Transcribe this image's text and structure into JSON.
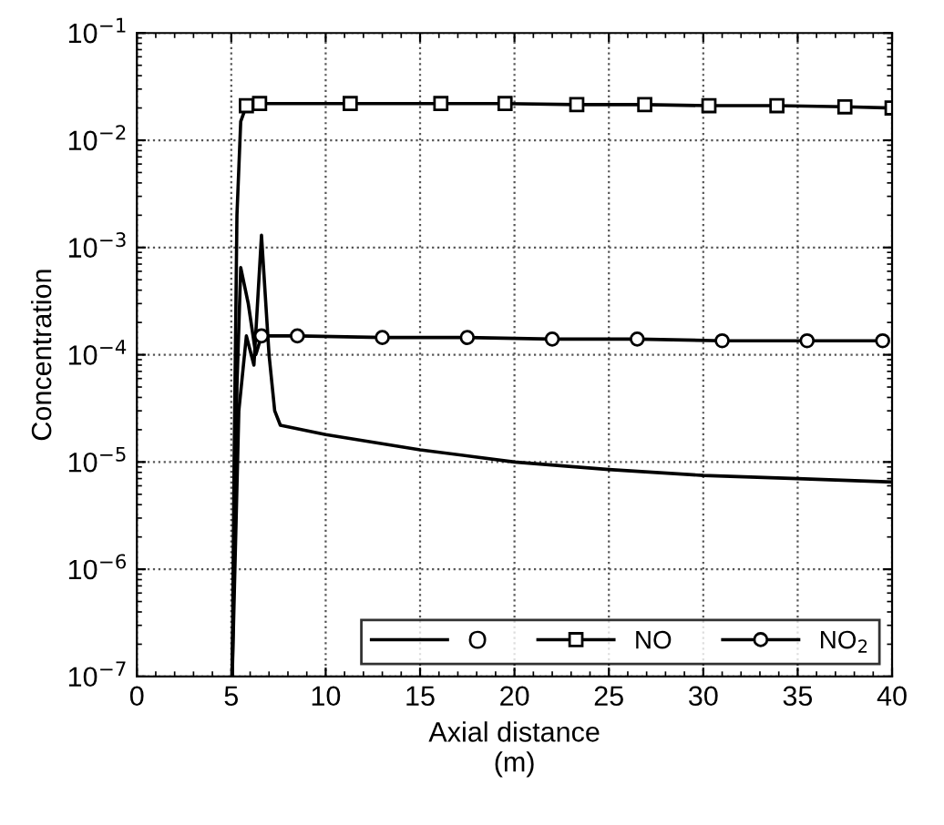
{
  "chart_data": {
    "type": "line",
    "xlabel": "Axial distance\n(m)",
    "ylabel": "Concentration",
    "log": "y",
    "grid": true,
    "legend": "bottom right",
    "line_style": "solid",
    "xlim": [
      0,
      40
    ],
    "xticks": [
      0,
      5,
      10,
      15,
      20,
      25,
      30,
      35,
      40
    ],
    "ylim": [
      1e-07,
      0.1
    ],
    "yticks": [
      {
        "value": 1e-07,
        "label": "10$^{−7}$"
      },
      {
        "value": 1e-06,
        "label": "10$^{−6}$"
      },
      {
        "value": 1e-05,
        "label": "10$^{−5}$"
      },
      {
        "value": 0.0001,
        "label": "10$^{−4}$"
      },
      {
        "value": 0.001,
        "label": "10$^{−3}$"
      },
      {
        "value": 0.01,
        "label": "10$^{−2}$"
      },
      {
        "value": 0.1,
        "label": "10$^{−1}$"
      }
    ],
    "series": [
      {
        "name": "O",
        "color": "#000000",
        "marker": "none",
        "x": [
          5.05,
          5.4,
          5.8,
          6.2,
          6.6,
          7.0,
          7.3,
          7.6,
          10,
          15,
          20,
          25,
          30,
          35,
          40
        ],
        "values": [
          1e-07,
          3e-05,
          0.00015,
          8e-05,
          0.0013,
          0.0001,
          3e-05,
          2.2e-05,
          1.8e-05,
          1.3e-05,
          1e-05,
          8.5e-06,
          7.5e-06,
          7e-06,
          6.5e-06
        ]
      },
      {
        "name": "NO",
        "color": "#000000",
        "marker": "square",
        "x": [
          5.05,
          5.15,
          5.3,
          5.5,
          5.8,
          6.5,
          11.3,
          16.1,
          19.5,
          23.3,
          26.9,
          30.3,
          33.9,
          37.5,
          40
        ],
        "values": [
          1e-07,
          1e-05,
          0.002,
          0.015,
          0.021,
          0.022,
          0.022,
          0.022,
          0.022,
          0.0215,
          0.0215,
          0.021,
          0.021,
          0.0205,
          0.02
        ]
      },
      {
        "name": "NO$_{2}$",
        "color": "#000000",
        "marker": "circle",
        "x": [
          5.05,
          5.3,
          5.5,
          5.9,
          6.3,
          6.6,
          8.5,
          13,
          17.5,
          22,
          26.5,
          31,
          35.5,
          39.5
        ],
        "values": [
          1e-07,
          5e-05,
          0.00065,
          0.0003,
          0.0001,
          0.00015,
          0.00015,
          0.000145,
          0.000145,
          0.00014,
          0.00014,
          0.000135,
          0.000135,
          0.000135
        ]
      }
    ]
  }
}
